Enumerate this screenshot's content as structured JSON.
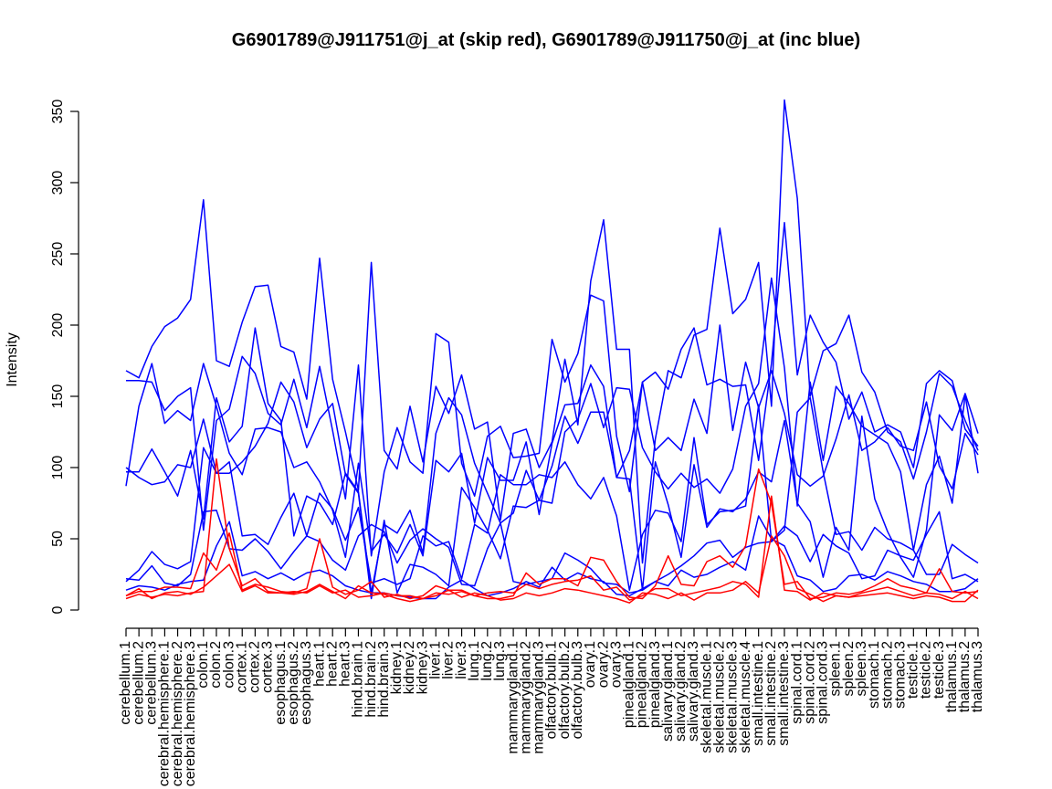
{
  "chart_data": {
    "type": "line",
    "title": "G6901789@J911751@j_at (skip red), G6901789@J911750@j_at (inc blue)",
    "xlabel": "",
    "ylabel": "Intensity",
    "ylim": [
      0,
      350
    ],
    "yticks": [
      0,
      50,
      100,
      150,
      200,
      250,
      300,
      350
    ],
    "grid": false,
    "categories": [
      "cerebellum.1",
      "cerebellum.2",
      "cerebellum.3",
      "cerebral.hemisphere.1",
      "cerebral.hemisphere.2",
      "cerebral.hemisphere.3",
      "colon.1",
      "colon.2",
      "colon.3",
      "cortex.1",
      "cortex.2",
      "cortex.3",
      "esophagus.1",
      "esophagus.2",
      "esophagus.3",
      "heart.1",
      "heart.2",
      "heart.3",
      "hind.brain.1",
      "hind.brain.2",
      "hind.brain.3",
      "kidney.1",
      "kidney.2",
      "kidney.3",
      "liver.1",
      "liver.2",
      "liver.3",
      "lung.1",
      "lung.2",
      "lung.3",
      "mammarygland.1",
      "mammarygland.2",
      "mammarygland.3",
      "olfactory.bulb.1",
      "olfactory.bulb.2",
      "olfactory.bulb.3",
      "ovary.1",
      "ovary.2",
      "ovary.3",
      "pinealgland.1",
      "pinealgland.2",
      "pinealgland.3",
      "salivary.gland.1",
      "salivary.gland.2",
      "salivary.gland.3",
      "skeletal.muscle.1",
      "skeletal.muscle.2",
      "skeletal.muscle.3",
      "skeletal.muscle.4",
      "small.intestine.1",
      "small.intestine.2",
      "small.intestine.3",
      "spinal.cord.1",
      "spinal.cord.2",
      "spinal.cord.3",
      "spleen.1",
      "spleen.2",
      "spleen.3",
      "stomach.1",
      "stomach.2",
      "stomach.3",
      "testicle.1",
      "testicle.2",
      "testicle.3",
      "thalamus.1",
      "thalamus.2",
      "thalamus.3"
    ],
    "series": [
      {
        "color": "#0000ff",
        "values": [
          168,
          163,
          185,
          199,
          205,
          218,
          288,
          175,
          171,
          202,
          227,
          228,
          185,
          181,
          148,
          247,
          162,
          125,
          84,
          244,
          112,
          99,
          143,
          104,
          157,
          138,
          165,
          127,
          132,
          63,
          124,
          127,
          100,
          118,
          176,
          130,
          231,
          274,
          183,
          183,
          33,
          120,
          168,
          163,
          193,
          197,
          268,
          208,
          218,
          244,
          143,
          358,
          289,
          150,
          182,
          187,
          207,
          167,
          153,
          125,
          118,
          92,
          125,
          166,
          157,
          133,
          112
        ]
      },
      {
        "color": "#0000ff",
        "values": [
          161,
          161,
          160,
          140,
          150,
          156,
          56,
          133,
          141,
          178,
          166,
          138,
          130,
          162,
          128,
          171,
          126,
          78,
          172,
          38,
          97,
          128,
          104,
          96,
          194,
          188,
          103,
          80,
          122,
          129,
          107,
          108,
          110,
          190,
          160,
          180,
          221,
          217,
          122,
          83,
          160,
          167,
          155,
          183,
          198,
          158,
          162,
          157,
          158,
          105,
          173,
          272,
          165,
          207,
          188,
          174,
          134,
          153,
          125,
          130,
          125,
          100,
          159,
          168,
          161,
          127,
          115
        ]
      },
      {
        "color": "#0000ff",
        "values": [
          87,
          143,
          173,
          131,
          140,
          133,
          173,
          143,
          110,
          95,
          127,
          128,
          125,
          100,
          104,
          90,
          70,
          37,
          103,
          41,
          53,
          40,
          60,
          38,
          105,
          97,
          110,
          61,
          107,
          91,
          91,
          118,
          67,
          117,
          144,
          145,
          172,
          157,
          93,
          112,
          160,
          112,
          121,
          112,
          148,
          124,
          200,
          126,
          174,
          142,
          168,
          138,
          95,
          87,
          94,
          120,
          151,
          112,
          118,
          128,
          115,
          112,
          146,
          101,
          85,
          124,
          109
        ]
      },
      {
        "color": "#0000ff",
        "values": [
          97,
          97,
          113,
          97,
          80,
          112,
          64,
          149,
          118,
          129,
          198,
          145,
          133,
          52,
          80,
          75,
          60,
          96,
          83,
          12,
          60,
          54,
          70,
          40,
          124,
          149,
          137,
          103,
          82,
          61,
          68,
          98,
          77,
          75,
          125,
          134,
          159,
          128,
          156,
          155,
          114,
          97,
          85,
          96,
          86,
          92,
          82,
          99,
          143,
          159,
          233,
          170,
          73,
          160,
          105,
          157,
          145,
          129,
          123,
          117,
          97,
          42,
          88,
          108,
          75,
          151,
          96
        ]
      },
      {
        "color": "#0000ff",
        "values": [
          100,
          93,
          88,
          90,
          102,
          100,
          134,
          96,
          96,
          104,
          115,
          131,
          160,
          146,
          114,
          134,
          145,
          95,
          82,
          8,
          63,
          12,
          32,
          30,
          25,
          17,
          86,
          72,
          56,
          36,
          73,
          72,
          77,
          101,
          136,
          117,
          139,
          139,
          93,
          92,
          14,
          104,
          74,
          37,
          102,
          58,
          71,
          69,
          78,
          97,
          90,
          133,
          75,
          62,
          23,
          58,
          42,
          136,
          78,
          55,
          37,
          23,
          56,
          137,
          126,
          152,
          124
        ]
      },
      {
        "color": "#0000ff",
        "values": [
          20,
          28,
          41,
          32,
          29,
          34,
          114,
          96,
          104,
          52,
          53,
          46,
          65,
          82,
          52,
          82,
          71,
          49,
          72,
          19,
          22,
          18,
          22,
          52,
          45,
          48,
          22,
          60,
          54,
          95,
          88,
          88,
          95,
          93,
          104,
          88,
          78,
          93,
          66,
          14,
          53,
          70,
          68,
          48,
          121,
          60,
          69,
          70,
          73,
          144,
          48,
          56,
          139,
          149,
          97,
          53,
          55,
          42,
          58,
          50,
          47,
          42,
          25,
          25,
          46,
          39,
          33
        ]
      },
      {
        "color": "#0000ff",
        "values": [
          22,
          21,
          31,
          19,
          17,
          25,
          69,
          70,
          43,
          42,
          50,
          41,
          29,
          41,
          52,
          48,
          35,
          28,
          52,
          60,
          55,
          33,
          49,
          57,
          50,
          44,
          18,
          17,
          43,
          61,
          20,
          18,
          20,
          22,
          40,
          35,
          29,
          19,
          18,
          12,
          14,
          20,
          25,
          31,
          38,
          47,
          49,
          37,
          44,
          47,
          48,
          59,
          52,
          34,
          53,
          45,
          40,
          22,
          24,
          42,
          38,
          35,
          53,
          69,
          22,
          25,
          20
        ]
      },
      {
        "color": "#0000ff",
        "values": [
          14,
          17,
          16,
          14,
          18,
          20,
          21,
          45,
          62,
          24,
          27,
          22,
          26,
          21,
          26,
          28,
          24,
          17,
          14,
          12,
          12,
          10,
          9,
          8,
          8,
          16,
          21,
          15,
          10,
          12,
          15,
          20,
          16,
          30,
          21,
          26,
          22,
          20,
          11,
          10,
          15,
          20,
          17,
          28,
          23,
          25,
          30,
          34,
          28,
          66,
          50,
          45,
          24,
          21,
          13,
          15,
          24,
          25,
          21,
          27,
          24,
          20,
          18,
          13,
          13,
          15,
          22
        ]
      },
      {
        "color": "#ff0000",
        "values": [
          10,
          13,
          13,
          16,
          16,
          15,
          40,
          28,
          54,
          14,
          18,
          16,
          13,
          12,
          15,
          50,
          16,
          11,
          14,
          20,
          9,
          11,
          8,
          10,
          17,
          14,
          14,
          10,
          8,
          8,
          10,
          26,
          18,
          22,
          22,
          17,
          37,
          35,
          20,
          9,
          8,
          17,
          38,
          18,
          17,
          34,
          38,
          30,
          45,
          99,
          75,
          18,
          20,
          8,
          9,
          12,
          11,
          13,
          17,
          22,
          17,
          15,
          12,
          29,
          13,
          12,
          13
        ]
      },
      {
        "color": "#ff0000",
        "values": [
          8,
          11,
          9,
          11,
          10,
          12,
          13,
          106,
          43,
          17,
          22,
          13,
          12,
          11,
          13,
          18,
          13,
          8,
          17,
          12,
          11,
          8,
          6,
          8,
          10,
          14,
          9,
          12,
          10,
          7,
          8,
          12,
          10,
          12,
          15,
          14,
          12,
          10,
          8,
          5,
          12,
          11,
          8,
          12,
          7,
          12,
          12,
          14,
          20,
          12,
          52,
          38,
          15,
          11,
          6,
          10,
          9,
          10,
          11,
          12,
          10,
          8,
          10,
          9,
          6,
          6,
          14
        ]
      },
      {
        "color": "#ff0000",
        "values": [
          10,
          15,
          8,
          12,
          13,
          11,
          16,
          24,
          32,
          13,
          17,
          12,
          12,
          13,
          12,
          17,
          12,
          14,
          9,
          10,
          12,
          10,
          10,
          8,
          12,
          11,
          13,
          10,
          12,
          13,
          12,
          18,
          15,
          18,
          20,
          21,
          24,
          14,
          16,
          7,
          10,
          15,
          15,
          10,
          12,
          14,
          16,
          20,
          18,
          9,
          80,
          14,
          13,
          7,
          12,
          10,
          9,
          12,
          14,
          16,
          13,
          10,
          12,
          11,
          8,
          13,
          8
        ]
      }
    ]
  }
}
